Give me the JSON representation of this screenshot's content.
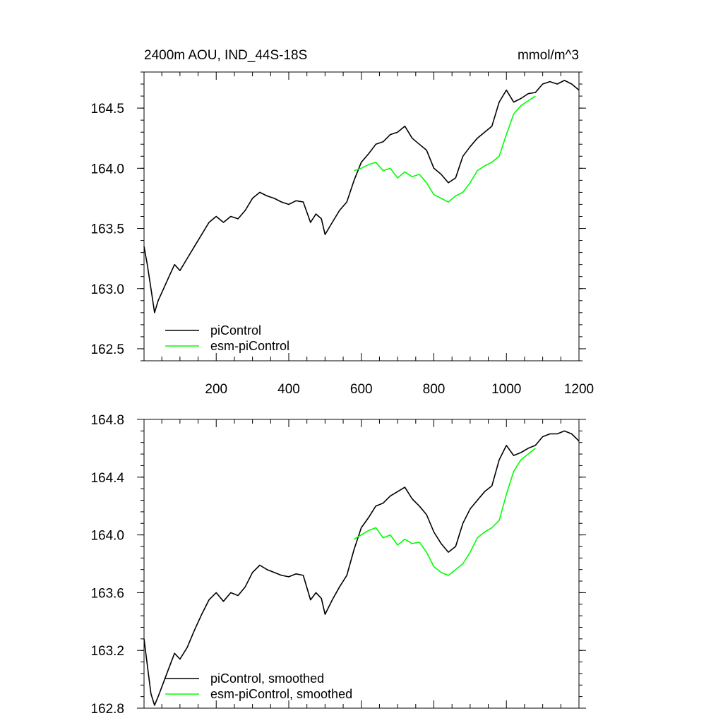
{
  "chart_data": [
    {
      "type": "line",
      "title": "2400m AOU, IND_44S-18S",
      "units": "mmol/m^3",
      "xlim": [
        1,
        1200
      ],
      "ylim": [
        162.4,
        164.8
      ],
      "xticks": [
        200,
        400,
        600,
        800,
        1000,
        1200
      ],
      "xtick_labels": [
        "200",
        "400",
        "600",
        "800",
        "1000",
        "1200"
      ],
      "yticks": [
        162.5,
        163.0,
        163.5,
        164.0,
        164.5
      ],
      "ytick_labels": [
        "162.5",
        "163.0",
        "163.5",
        "164.0",
        "164.5"
      ],
      "grid": false,
      "legend_position": "bottom-left",
      "series": [
        {
          "name": "piControl",
          "color": "#000000",
          "x": [
            1,
            10,
            20,
            30,
            40,
            55,
            70,
            85,
            100,
            120,
            140,
            160,
            180,
            200,
            220,
            240,
            260,
            280,
            300,
            320,
            340,
            360,
            380,
            400,
            420,
            440,
            460,
            475,
            490,
            500,
            520,
            540,
            560,
            580,
            600,
            620,
            640,
            660,
            680,
            700,
            720,
            740,
            760,
            780,
            800,
            820,
            840,
            860,
            880,
            900,
            920,
            940,
            960,
            980,
            1000,
            1020,
            1040,
            1060,
            1080,
            1100,
            1120,
            1140,
            1160,
            1180,
            1200
          ],
          "values": [
            163.35,
            163.2,
            163.0,
            162.8,
            162.9,
            163.0,
            163.1,
            163.2,
            163.15,
            163.25,
            163.35,
            163.45,
            163.55,
            163.6,
            163.55,
            163.6,
            163.58,
            163.65,
            163.75,
            163.8,
            163.77,
            163.75,
            163.72,
            163.7,
            163.73,
            163.72,
            163.55,
            163.62,
            163.58,
            163.45,
            163.55,
            163.65,
            163.72,
            163.9,
            164.05,
            164.12,
            164.2,
            164.22,
            164.28,
            164.3,
            164.35,
            164.25,
            164.2,
            164.15,
            164.0,
            163.95,
            163.88,
            163.92,
            164.1,
            164.18,
            164.25,
            164.3,
            164.35,
            164.55,
            164.65,
            164.55,
            164.58,
            164.62,
            164.63,
            164.7,
            164.72,
            164.7,
            164.73,
            164.7,
            164.65
          ]
        },
        {
          "name": "esm-piControl",
          "color": "#00ff00",
          "x": [
            580,
            600,
            620,
            640,
            660,
            680,
            700,
            720,
            740,
            760,
            780,
            800,
            820,
            840,
            860,
            880,
            900,
            920,
            940,
            960,
            980,
            1000,
            1020,
            1040,
            1060,
            1080
          ],
          "values": [
            163.98,
            164.0,
            164.03,
            164.05,
            163.98,
            164.0,
            163.92,
            163.97,
            163.93,
            163.95,
            163.88,
            163.78,
            163.75,
            163.72,
            163.77,
            163.8,
            163.88,
            163.98,
            164.02,
            164.05,
            164.1,
            164.28,
            164.45,
            164.52,
            164.56,
            164.6
          ]
        }
      ]
    },
    {
      "type": "line",
      "title": "",
      "xlim": [
        1,
        1200
      ],
      "ylim": [
        162.8,
        164.8
      ],
      "yticks": [
        162.8,
        163.2,
        163.6,
        164.0,
        164.4,
        164.8
      ],
      "ytick_labels": [
        "162.8",
        "163.2",
        "163.6",
        "164.0",
        "164.4",
        "164.8"
      ],
      "grid": false,
      "legend_position": "bottom-left",
      "series": [
        {
          "name": "piControl, smoothed",
          "color": "#000000",
          "x": [
            1,
            10,
            20,
            30,
            40,
            55,
            70,
            85,
            100,
            120,
            140,
            160,
            180,
            200,
            220,
            240,
            260,
            280,
            300,
            320,
            340,
            360,
            380,
            400,
            420,
            440,
            460,
            475,
            490,
            500,
            520,
            540,
            560,
            580,
            600,
            620,
            640,
            660,
            680,
            700,
            720,
            740,
            760,
            780,
            800,
            820,
            840,
            860,
            880,
            900,
            920,
            940,
            960,
            980,
            1000,
            1020,
            1040,
            1060,
            1080,
            1100,
            1120,
            1140,
            1160,
            1180,
            1200
          ],
          "values": [
            163.28,
            163.1,
            162.9,
            162.82,
            162.88,
            162.98,
            163.08,
            163.18,
            163.14,
            163.22,
            163.34,
            163.45,
            163.55,
            163.6,
            163.54,
            163.6,
            163.58,
            163.64,
            163.74,
            163.79,
            163.76,
            163.74,
            163.72,
            163.71,
            163.73,
            163.72,
            163.55,
            163.6,
            163.56,
            163.45,
            163.55,
            163.64,
            163.72,
            163.9,
            164.05,
            164.12,
            164.2,
            164.22,
            164.27,
            164.3,
            164.33,
            164.25,
            164.2,
            164.14,
            164.02,
            163.94,
            163.88,
            163.92,
            164.08,
            164.18,
            164.24,
            164.3,
            164.34,
            164.52,
            164.62,
            164.55,
            164.57,
            164.6,
            164.62,
            164.68,
            164.7,
            164.7,
            164.72,
            164.7,
            164.65
          ]
        },
        {
          "name": "esm-piControl, smoothed",
          "color": "#00ff00",
          "x": [
            580,
            600,
            620,
            640,
            660,
            680,
            700,
            720,
            740,
            760,
            780,
            800,
            820,
            840,
            860,
            880,
            900,
            920,
            940,
            960,
            980,
            1000,
            1020,
            1040,
            1060,
            1080
          ],
          "values": [
            163.97,
            164.0,
            164.03,
            164.05,
            163.98,
            164.0,
            163.93,
            163.97,
            163.94,
            163.95,
            163.88,
            163.78,
            163.74,
            163.72,
            163.76,
            163.8,
            163.88,
            163.98,
            164.02,
            164.05,
            164.1,
            164.28,
            164.44,
            164.52,
            164.56,
            164.6
          ]
        }
      ]
    }
  ]
}
